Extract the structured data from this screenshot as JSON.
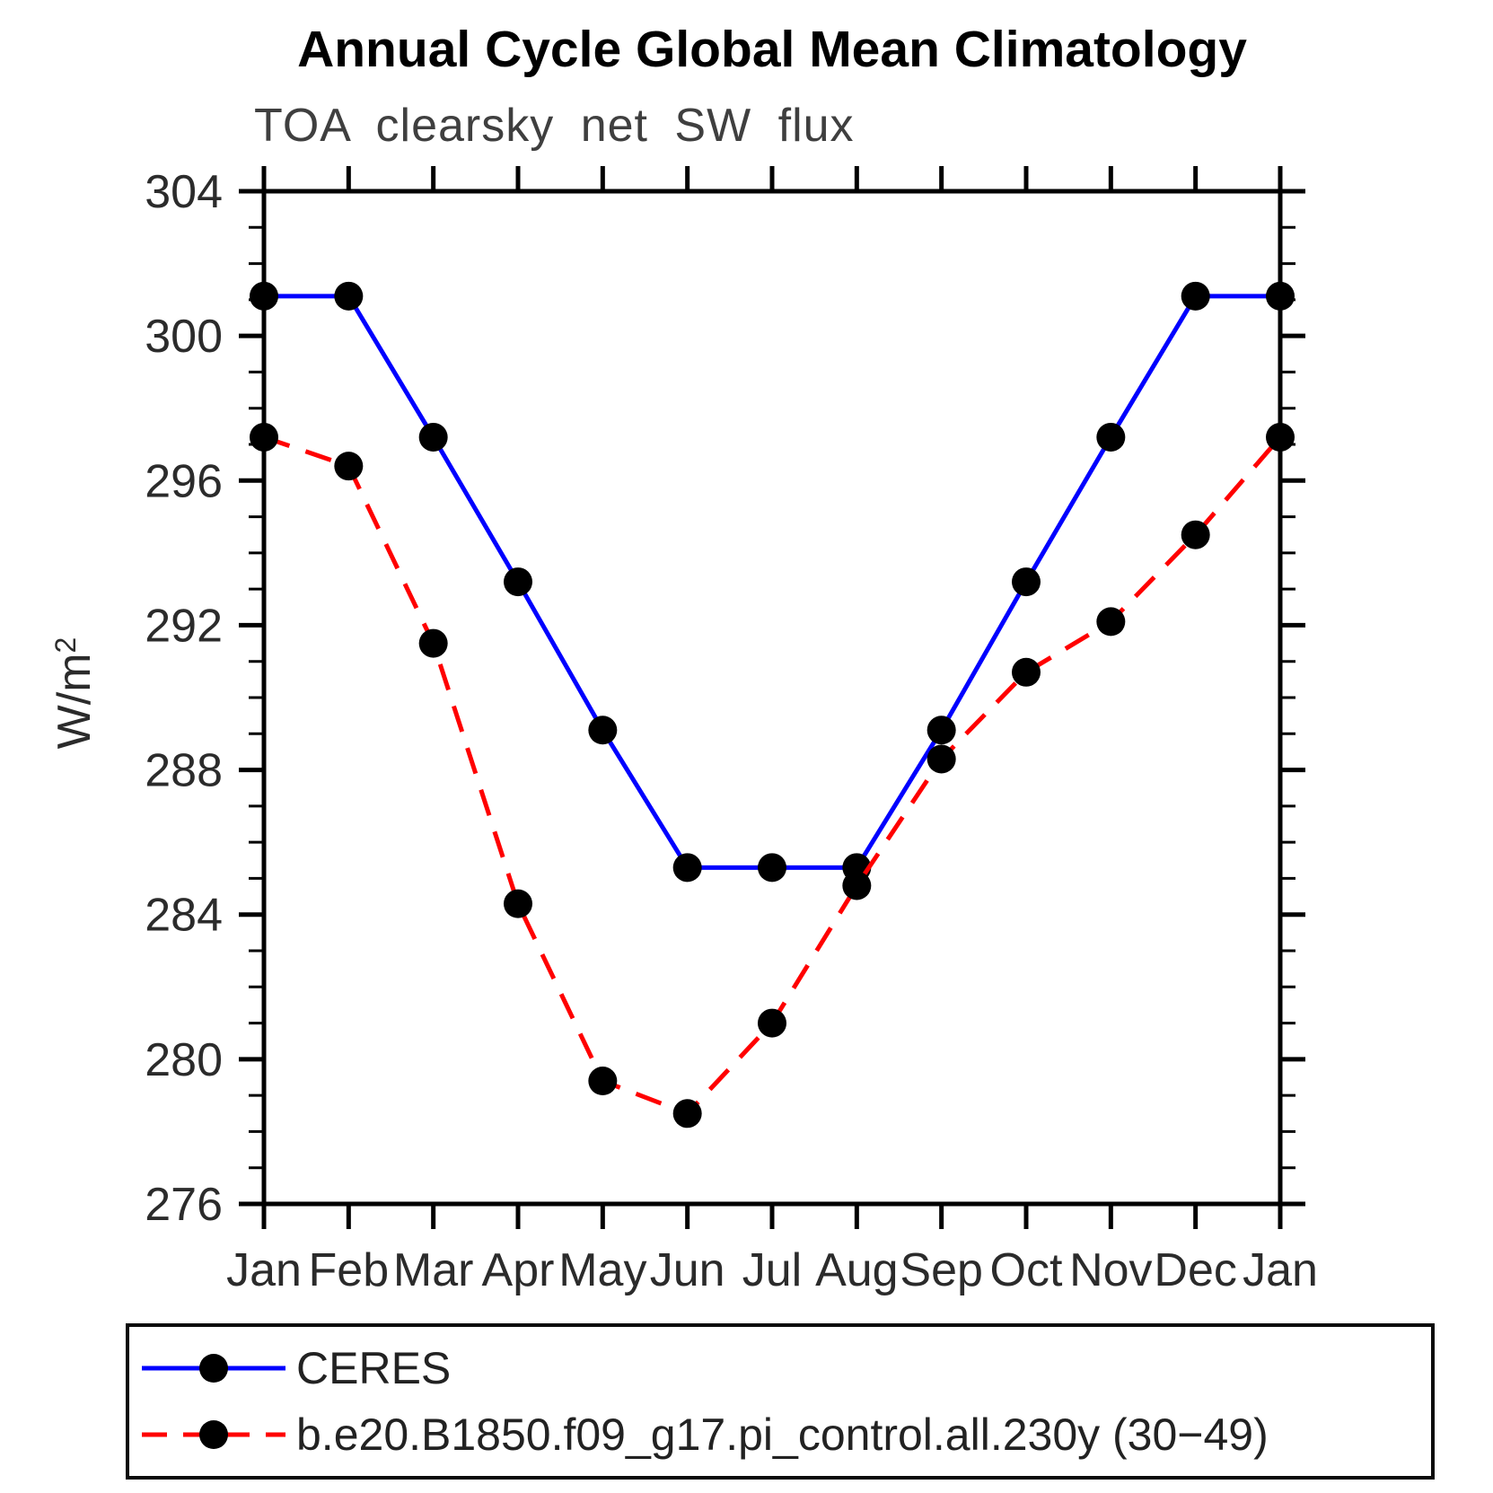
{
  "chart_data": {
    "type": "line",
    "title": "Annual Cycle Global Mean Climatology",
    "subtitle": "TOA clearsky net SW flux",
    "ylabel": "W/m²",
    "ylabel_base": "W/m",
    "ylabel_exp": "2",
    "x_categories": [
      "Jan",
      "Feb",
      "Mar",
      "Apr",
      "May",
      "Jun",
      "Jul",
      "Aug",
      "Sep",
      "Oct",
      "Nov",
      "Dec",
      "Jan"
    ],
    "yticks": [
      276,
      280,
      284,
      288,
      292,
      296,
      300,
      304
    ],
    "ylim": [
      276,
      304
    ],
    "ytick_step": 4,
    "yminor_step": 1,
    "grid": false,
    "legend_position": "bottom-left",
    "marker": "circle",
    "marker_color": "#000000",
    "series": [
      {
        "name": "CERES",
        "color": "#0000ff",
        "line_style": "solid",
        "values": [
          301.1,
          301.1,
          297.2,
          293.2,
          289.1,
          285.3,
          285.3,
          285.3,
          289.1,
          293.2,
          297.2,
          301.1,
          301.1
        ]
      },
      {
        "name": "b.e20.B1850.f09_g17.pi_control.all.230y (30−49)",
        "color": "#ff0000",
        "line_style": "dashed",
        "values": [
          297.2,
          296.4,
          291.5,
          284.3,
          279.4,
          278.5,
          281.0,
          284.8,
          288.3,
          290.7,
          292.1,
          294.5,
          297.2
        ]
      }
    ]
  }
}
